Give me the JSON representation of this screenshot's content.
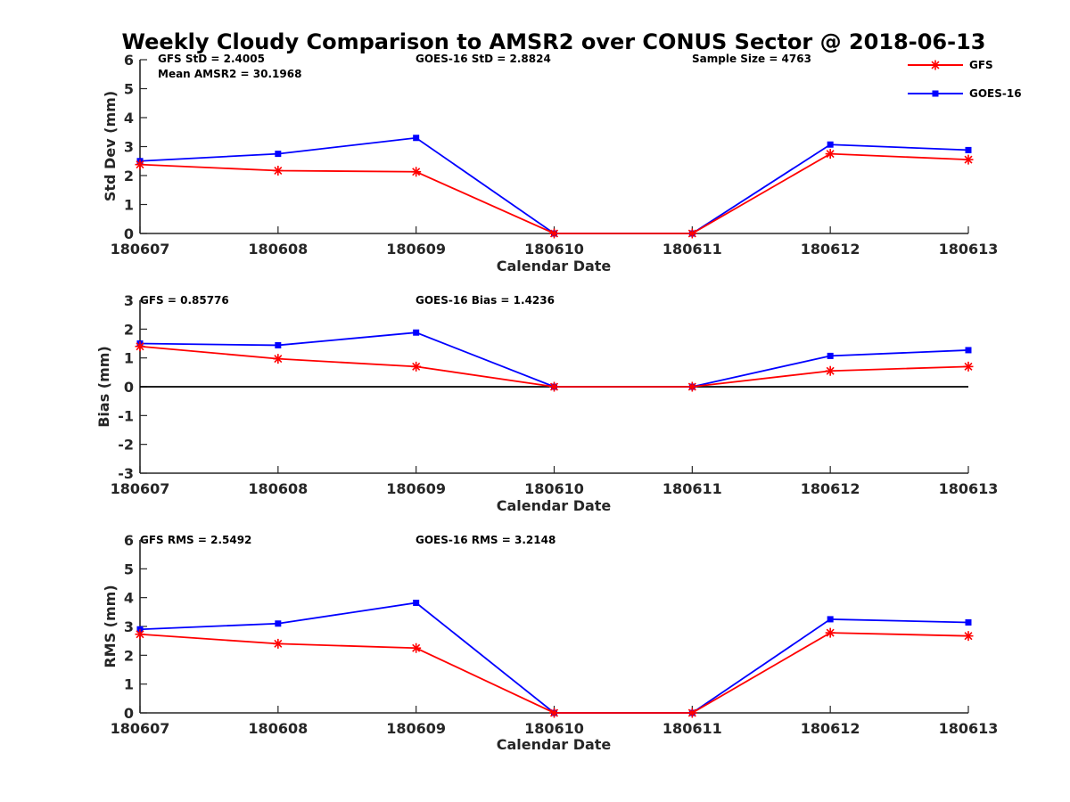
{
  "figure_title": "Weekly Cloudy Comparison to AMSR2 over CONUS Sector @ 2018-06-13",
  "legend": {
    "placement": "top-right",
    "items": [
      {
        "label": "GFS",
        "color": "#ff0000",
        "marker": "asterisk"
      },
      {
        "label": "GOES-16",
        "color": "#0000ff",
        "marker": "square"
      }
    ]
  },
  "chart_data": [
    {
      "type": "line",
      "xlabel": "Calendar Date",
      "ylabel": "Std Dev (mm)",
      "categories": [
        "180607",
        "180608",
        "180609",
        "180610",
        "180611",
        "180612",
        "180613"
      ],
      "ylim": [
        0,
        6
      ],
      "yticks": [
        "0",
        "1",
        "2",
        "3",
        "4",
        "5",
        "6"
      ],
      "zero_line": false,
      "annotations": {
        "a1": "GFS StD = 2.4005",
        "a2": "Mean AMSR2 = 30.1968",
        "a3": "GOES-16 StD = 2.8824",
        "a4": "Sample Size = 4763"
      },
      "series": [
        {
          "name": "GFS",
          "color": "#ff0000",
          "marker": "asterisk",
          "values": [
            2.38,
            2.17,
            2.13,
            0,
            0,
            2.75,
            2.55
          ]
        },
        {
          "name": "GOES-16",
          "color": "#0000ff",
          "marker": "square",
          "values": [
            2.5,
            2.75,
            3.3,
            0,
            0,
            3.07,
            2.88
          ]
        }
      ]
    },
    {
      "type": "line",
      "xlabel": "Calendar Date",
      "ylabel": "Bias (mm)",
      "categories": [
        "180607",
        "180608",
        "180609",
        "180610",
        "180611",
        "180612",
        "180613"
      ],
      "ylim": [
        -3,
        3
      ],
      "yticks": [
        "-3",
        "-2",
        "-1",
        "0",
        "1",
        "2",
        "3"
      ],
      "zero_line": true,
      "annotations": {
        "a1": "GFS = 0.85776",
        "a3": "GOES-16 Bias  = 1.4236"
      },
      "series": [
        {
          "name": "GFS",
          "color": "#ff0000",
          "marker": "asterisk",
          "values": [
            1.4,
            0.97,
            0.7,
            0,
            0,
            0.55,
            0.7
          ]
        },
        {
          "name": "GOES-16",
          "color": "#0000ff",
          "marker": "square",
          "values": [
            1.5,
            1.44,
            1.88,
            0,
            0,
            1.07,
            1.27
          ]
        }
      ]
    },
    {
      "type": "line",
      "xlabel": "Calendar Date",
      "ylabel": "RMS (mm)",
      "categories": [
        "180607",
        "180608",
        "180609",
        "180610",
        "180611",
        "180612",
        "180613"
      ],
      "ylim": [
        0,
        6
      ],
      "yticks": [
        "0",
        "1",
        "2",
        "3",
        "4",
        "5",
        "6"
      ],
      "zero_line": false,
      "annotations": {
        "a1": "GFS RMS = 2.5492",
        "a3": "GOES-16 RMS = 3.2148"
      },
      "series": [
        {
          "name": "GFS",
          "color": "#ff0000",
          "marker": "asterisk",
          "values": [
            2.73,
            2.4,
            2.25,
            0,
            0,
            2.78,
            2.67
          ]
        },
        {
          "name": "GOES-16",
          "color": "#0000ff",
          "marker": "square",
          "values": [
            2.9,
            3.1,
            3.82,
            0,
            0,
            3.25,
            3.14
          ]
        }
      ]
    }
  ]
}
